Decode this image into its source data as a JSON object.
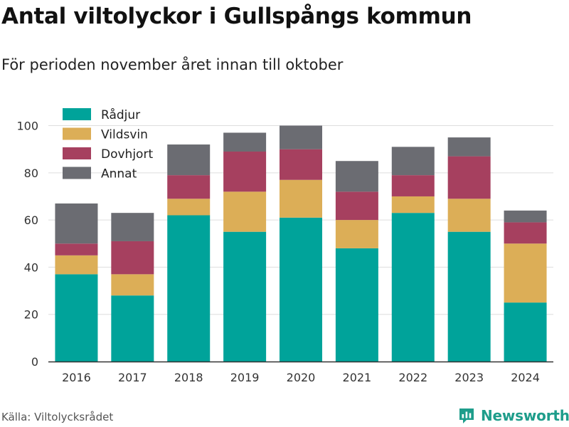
{
  "title": "Antal viltolyckor i Gullspångs kommun",
  "subtitle": "För perioden november året innan till oktober",
  "source": "Källa: Viltolycksrådet",
  "brand": {
    "name": "Newsworthy",
    "icon": "newsworthy-logo-icon",
    "color": "#1e9d8b"
  },
  "chart_data": {
    "type": "bar",
    "stacked": true,
    "categories": [
      "2016",
      "2017",
      "2018",
      "2019",
      "2020",
      "2021",
      "2022",
      "2023",
      "2024"
    ],
    "series": [
      {
        "name": "Rådjur",
        "color": "#00a39a",
        "values": [
          37,
          28,
          62,
          55,
          61,
          48,
          63,
          55,
          25
        ]
      },
      {
        "name": "Vildsvin",
        "color": "#dcae57",
        "values": [
          8,
          9,
          7,
          17,
          16,
          12,
          7,
          14,
          25
        ]
      },
      {
        "name": "Dovhjort",
        "color": "#a6405f",
        "values": [
          5,
          14,
          10,
          17,
          13,
          12,
          9,
          18,
          9
        ]
      },
      {
        "name": "Annat",
        "color": "#6b6c72",
        "values": [
          17,
          12,
          13,
          8,
          10,
          13,
          12,
          8,
          5
        ]
      }
    ],
    "yticks": [
      0,
      20,
      40,
      60,
      80,
      100
    ],
    "ylim": [
      0,
      108
    ],
    "grid": true,
    "legend_position": "top-left"
  }
}
